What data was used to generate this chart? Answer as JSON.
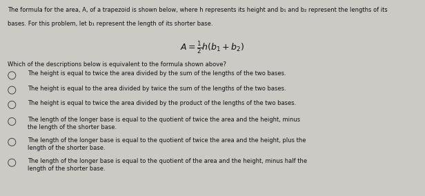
{
  "background_color": "#cccac5",
  "text_color": "#111111",
  "figsize": [
    6.16,
    2.84
  ],
  "dpi": 100,
  "intro_line1": "The formula for the area, A, of a trapezoid is shown below, where h represents its height and b₁ and b₂ represent the lengths of its",
  "intro_line2": "bases. For this problem, let b₁ represent the length of its shorter base.",
  "formula": "$A = \\frac{1}{2}h(b_1 + b_2)$",
  "question": "Which of the descriptions below is equivalent to the formula shown above?",
  "options": [
    "The height is equal to twice the area divided by the sum of the lengths of the two bases.",
    "The height is equal to the area divided by twice the sum of the lengths of the two bases.",
    "The height is equal to twice the area divided by the product of the lengths of the two bases.",
    "The length of the longer base is equal to the quotient of twice the area and the height, minus\nthe length of the shorter base.",
    "The length of the longer base is equal to the quotient of twice the area and the height, plus the\nlength of the shorter base.",
    "The length of the longer base is equal to the quotient of the area and the height, minus half the\nlength of the shorter base."
  ],
  "intro_fontsize": 6.0,
  "formula_fontsize": 9.0,
  "question_fontsize": 6.0,
  "option_fontsize": 6.0
}
